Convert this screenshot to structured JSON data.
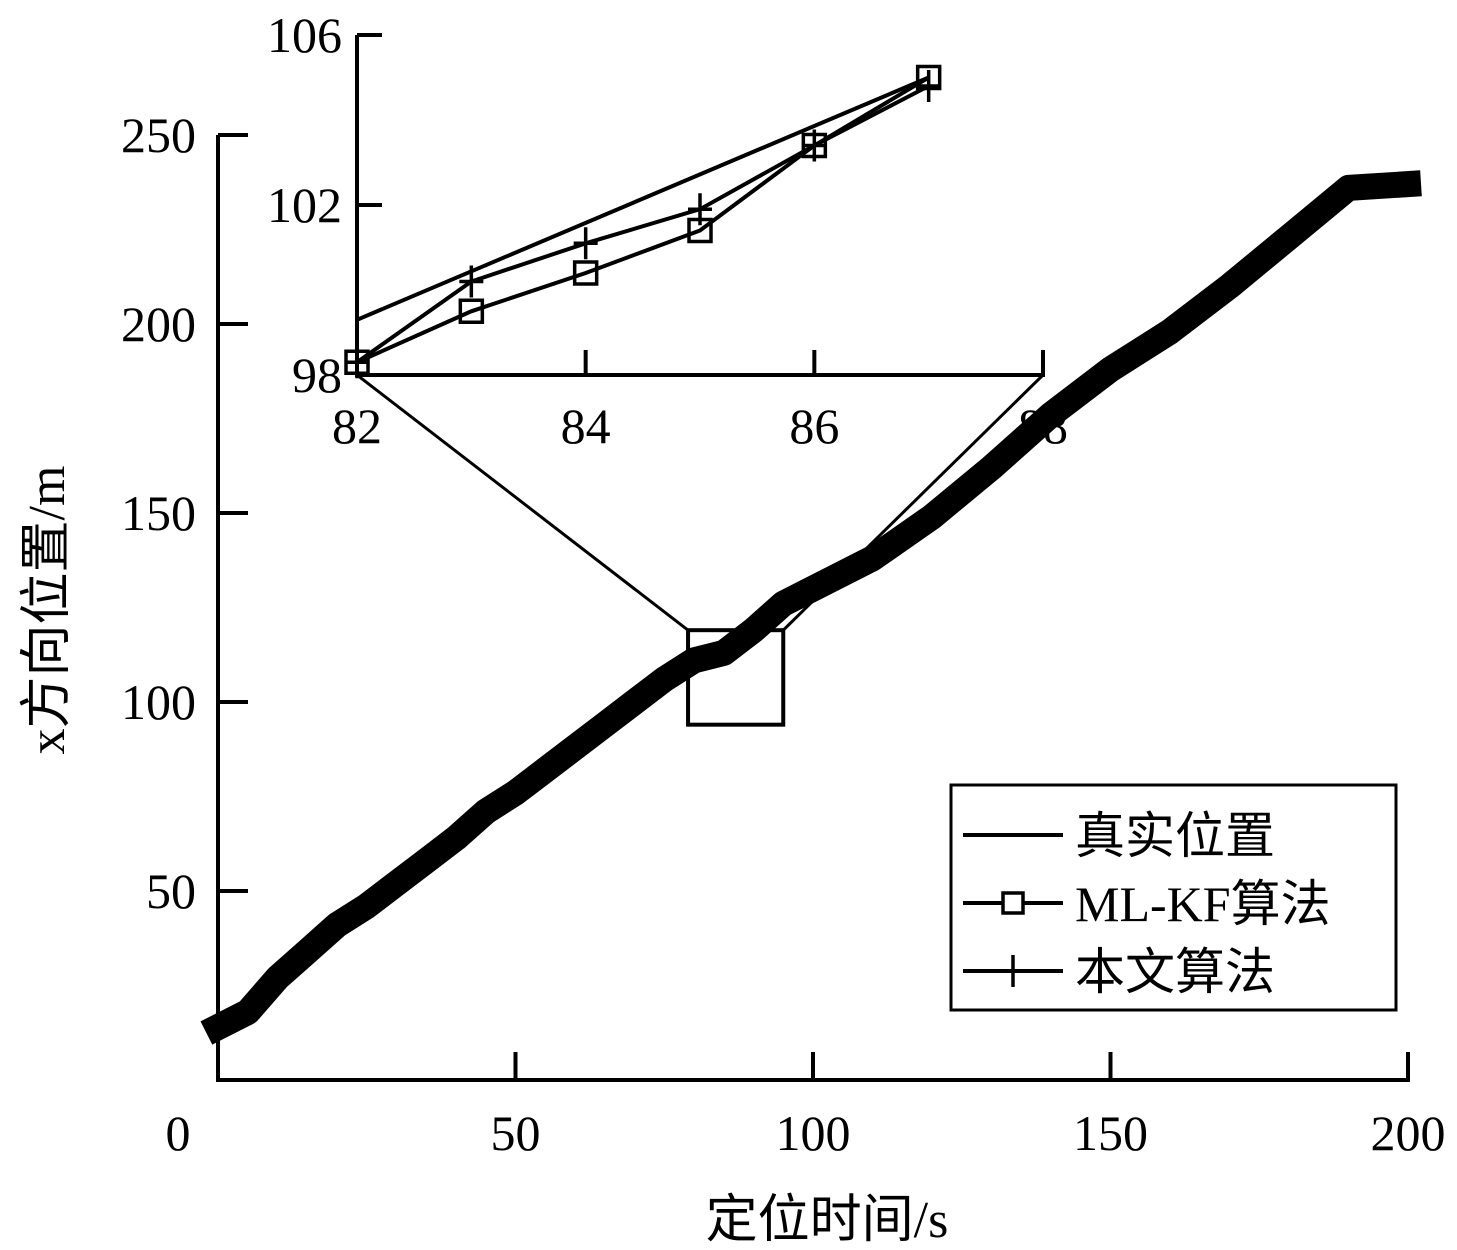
{
  "chart_data": [
    {
      "type": "line",
      "role": "main",
      "title": "",
      "xlabel": "定位时间/s",
      "ylabel": "x方向位置/m",
      "xlim": [
        0,
        200
      ],
      "ylim": [
        0,
        250
      ],
      "xticks": [
        "0",
        "50",
        "100",
        "150",
        "200"
      ],
      "yticks": [
        "50",
        "100",
        "150",
        "200",
        "250"
      ],
      "grid": false,
      "legend": {
        "placement": "bottom-right",
        "entries": [
          "真实位置",
          "ML-KF算法",
          "本文算法"
        ]
      },
      "series": [
        {
          "name": "真实位置",
          "marker": "none",
          "points": [
            [
              0,
              14
            ],
            [
              5,
              18
            ],
            [
              10,
              27
            ],
            [
              15,
              34
            ],
            [
              20,
              41
            ],
            [
              25,
              46
            ],
            [
              30,
              52
            ],
            [
              35,
              58
            ],
            [
              40,
              64
            ],
            [
              45,
              71
            ],
            [
              50,
              76
            ],
            [
              55,
              82
            ],
            [
              60,
              88
            ],
            [
              65,
              94
            ],
            [
              70,
              100
            ],
            [
              75,
              106
            ],
            [
              80,
              111
            ],
            [
              85,
              113
            ],
            [
              90,
              119
            ],
            [
              95,
              126
            ],
            [
              100,
              130
            ],
            [
              110,
              138
            ],
            [
              120,
              149
            ],
            [
              130,
              162
            ],
            [
              140,
              176
            ],
            [
              150,
              188
            ],
            [
              160,
              198
            ],
            [
              170,
              210
            ],
            [
              180,
              223
            ],
            [
              190,
              236
            ],
            [
              200,
              237
            ]
          ]
        },
        {
          "name": "ML-KF算法",
          "marker": "square",
          "points": [
            [
              0,
              14
            ],
            [
              5,
              18
            ],
            [
              10,
              27
            ],
            [
              15,
              34
            ],
            [
              20,
              41
            ],
            [
              25,
              46
            ],
            [
              30,
              52
            ],
            [
              35,
              58
            ],
            [
              40,
              64
            ],
            [
              45,
              71
            ],
            [
              50,
              76
            ],
            [
              55,
              82
            ],
            [
              60,
              88
            ],
            [
              65,
              94
            ],
            [
              70,
              100
            ],
            [
              75,
              106
            ],
            [
              80,
              111
            ],
            [
              85,
              113
            ],
            [
              90,
              119
            ],
            [
              95,
              126
            ],
            [
              100,
              130
            ],
            [
              110,
              138
            ],
            [
              120,
              149
            ],
            [
              130,
              162
            ],
            [
              140,
              176
            ],
            [
              150,
              188
            ],
            [
              160,
              198
            ],
            [
              170,
              210
            ],
            [
              180,
              223
            ],
            [
              190,
              236
            ],
            [
              200,
              237
            ]
          ]
        },
        {
          "name": "本文算法",
          "marker": "plus",
          "points": [
            [
              0,
              14
            ],
            [
              5,
              18
            ],
            [
              10,
              27
            ],
            [
              15,
              34
            ],
            [
              20,
              41
            ],
            [
              25,
              46
            ],
            [
              30,
              52
            ],
            [
              35,
              58
            ],
            [
              40,
              64
            ],
            [
              45,
              71
            ],
            [
              50,
              76
            ],
            [
              55,
              82
            ],
            [
              60,
              88
            ],
            [
              65,
              94
            ],
            [
              70,
              100
            ],
            [
              75,
              106
            ],
            [
              80,
              111
            ],
            [
              85,
              113
            ],
            [
              90,
              119
            ],
            [
              95,
              126
            ],
            [
              100,
              130
            ],
            [
              110,
              138
            ],
            [
              120,
              149
            ],
            [
              130,
              162
            ],
            [
              140,
              176
            ],
            [
              150,
              188
            ],
            [
              160,
              198
            ],
            [
              170,
              210
            ],
            [
              180,
              223
            ],
            [
              190,
              236
            ],
            [
              200,
              237
            ]
          ]
        }
      ],
      "zoom_box": {
        "xlim": [
          79,
          95
        ],
        "ylim": [
          94,
          119
        ]
      }
    },
    {
      "type": "line",
      "role": "inset",
      "title": "",
      "xlim": [
        82,
        88
      ],
      "ylim": [
        98,
        106
      ],
      "xticks": [
        "82",
        "84",
        "86",
        "88"
      ],
      "yticks": [
        "98",
        "102",
        "106"
      ],
      "grid": false,
      "series": [
        {
          "name": "真实位置",
          "marker": "none",
          "points": [
            [
              82,
              99.3
            ],
            [
              87,
              105.0
            ]
          ]
        },
        {
          "name": "ML-KF算法",
          "marker": "square",
          "points": [
            [
              82,
              98.3
            ],
            [
              83,
              99.5
            ],
            [
              84,
              100.4
            ],
            [
              85,
              101.4
            ],
            [
              86,
              103.4
            ],
            [
              87,
              105.0
            ]
          ]
        },
        {
          "name": "本文算法",
          "marker": "plus",
          "points": [
            [
              82,
              98.3
            ],
            [
              83,
              100.2
            ],
            [
              84,
              101.1
            ],
            [
              85,
              101.9
            ],
            [
              86,
              103.4
            ],
            [
              87,
              104.8
            ]
          ]
        }
      ]
    }
  ]
}
